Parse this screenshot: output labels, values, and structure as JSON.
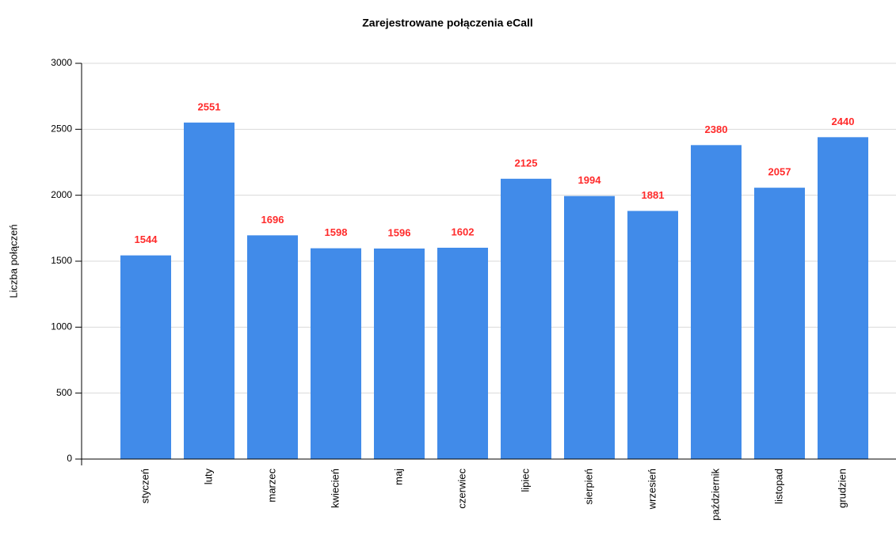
{
  "chart_data": {
    "type": "bar",
    "title": "Zarejestrowane połączenia eCall",
    "y_label": "Liczba połączeń",
    "categories": [
      "styczeń",
      "luty",
      "marzec",
      "kwiecień",
      "maj",
      "czerwiec",
      "lipiec",
      "sierpień",
      "wrzesień",
      "październik",
      "listopad",
      "grudzien"
    ],
    "values": [
      1544,
      2551,
      1696,
      1598,
      1596,
      1602,
      2125,
      1994,
      1881,
      2380,
      2057,
      2440
    ],
    "color": "#418be9",
    "label_color": "#ff2b2b",
    "ylim": [
      0,
      3000
    ],
    "yticks": [
      0,
      500,
      1000,
      1500,
      2000,
      2500,
      3000
    ],
    "grid": true
  }
}
